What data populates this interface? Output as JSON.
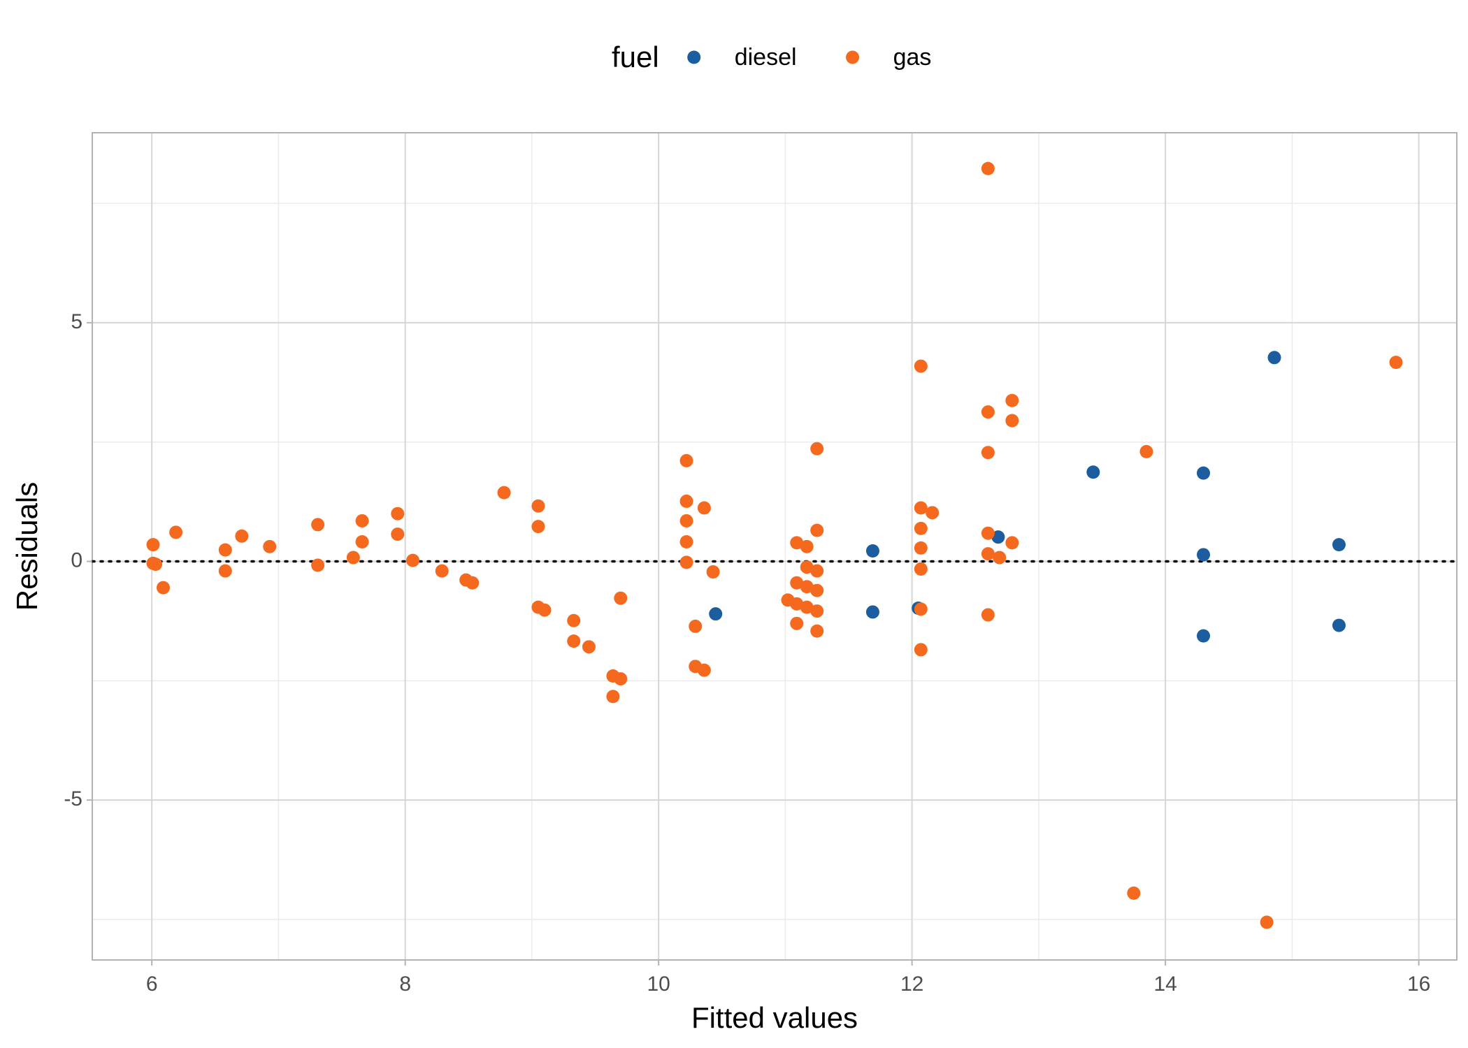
{
  "chart_data": {
    "type": "scatter",
    "x_label": "Fitted values",
    "y_label": "Residuals",
    "legend_title": "fuel",
    "legend_position": "top",
    "grid": true,
    "xlim": [
      5.53,
      16.3
    ],
    "ylim": [
      -8.35,
      8.98
    ],
    "xticks": [
      6,
      8,
      10,
      12,
      14,
      16
    ],
    "yticks": [
      -5,
      0,
      5
    ],
    "xminor": [
      7,
      9,
      11,
      13,
      15
    ],
    "yminor": [
      -7.5,
      -2.5,
      2.5,
      7.5
    ],
    "reference_line": 0,
    "series": [
      {
        "name": "diesel",
        "color": "#1b5d9f",
        "x": [
          10.45,
          11.69,
          11.69,
          12.05,
          12.68,
          13.43,
          14.3,
          14.3,
          14.3,
          14.86,
          15.37,
          15.37
        ],
        "values": [
          -1.1,
          0.22,
          -1.06,
          -0.98,
          0.51,
          1.87,
          1.85,
          0.14,
          -1.56,
          4.27,
          0.35,
          -1.34
        ]
      },
      {
        "name": "gas",
        "color": "#f5691e",
        "x": [
          6.01,
          6.01,
          6.03,
          6.09,
          6.19,
          6.58,
          6.58,
          6.71,
          6.93,
          7.31,
          7.31,
          7.59,
          7.66,
          7.66,
          7.94,
          7.94,
          8.06,
          8.29,
          8.48,
          8.53,
          8.78,
          9.05,
          9.05,
          9.05,
          9.1,
          9.33,
          9.33,
          9.45,
          9.64,
          9.64,
          9.7,
          9.7,
          10.22,
          10.22,
          10.22,
          10.22,
          10.22,
          10.29,
          10.29,
          10.36,
          10.36,
          10.43,
          11.02,
          11.09,
          11.09,
          11.09,
          11.09,
          11.17,
          11.17,
          11.17,
          11.17,
          11.25,
          11.25,
          11.25,
          11.25,
          11.25,
          11.25,
          12.07,
          12.07,
          12.07,
          12.07,
          12.07,
          12.07,
          12.07,
          12.16,
          12.6,
          12.6,
          12.6,
          12.6,
          12.6,
          12.6,
          12.69,
          12.79,
          12.79,
          12.79,
          13.75,
          13.85,
          14.8,
          15.82
        ],
        "values": [
          0.35,
          -0.04,
          -0.06,
          -0.55,
          0.61,
          0.24,
          -0.2,
          0.53,
          0.31,
          0.77,
          -0.08,
          0.08,
          0.85,
          0.41,
          1.0,
          0.57,
          0.02,
          -0.2,
          -0.39,
          -0.45,
          1.44,
          1.16,
          0.73,
          -0.96,
          -1.02,
          -1.24,
          -1.67,
          -1.79,
          -2.4,
          -2.83,
          -2.46,
          -0.77,
          2.11,
          1.26,
          0.85,
          0.41,
          -0.02,
          -1.36,
          -2.2,
          1.12,
          -2.28,
          -0.22,
          -0.81,
          0.39,
          -0.45,
          -0.89,
          -1.3,
          0.31,
          -0.12,
          -0.53,
          -0.96,
          0.65,
          -0.2,
          -0.61,
          -1.04,
          -1.46,
          2.36,
          4.09,
          1.12,
          0.69,
          0.28,
          -0.16,
          -1.0,
          -1.85,
          1.02,
          8.23,
          3.13,
          2.28,
          0.59,
          0.16,
          -1.12,
          0.08,
          3.37,
          2.95,
          0.39,
          -6.95,
          2.3,
          -7.56,
          4.17
        ]
      }
    ]
  }
}
